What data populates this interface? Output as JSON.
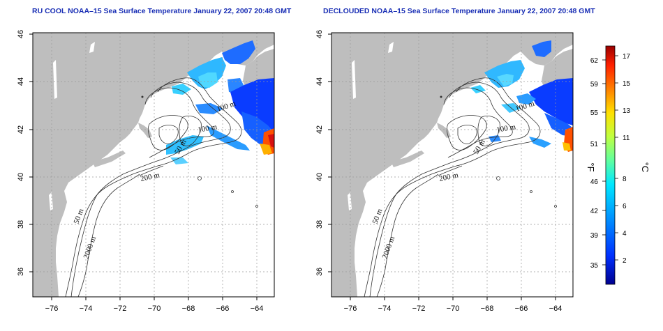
{
  "titles": {
    "left": "RU COOL NOAA–15 Sea Surface Temperature January 22, 2007 20:48 GMT",
    "right": "DECLOUDED NOAA–15 Sea Surface Temperature January 22, 2007 20:48 GMT"
  },
  "axes": {
    "x_ticks": [
      "−76",
      "−74",
      "−72",
      "−70",
      "−68",
      "−66",
      "−64"
    ],
    "y_ticks": [
      "36",
      "38",
      "40",
      "42",
      "44",
      "46"
    ]
  },
  "contours": {
    "labels_left": [
      "100 m",
      "100 m",
      "50 m",
      "200 m",
      "50 m",
      "2000 m"
    ],
    "labels_right": [
      "100 m",
      "100 m",
      "50 m",
      "200 m",
      "50 m",
      "2000 m"
    ]
  },
  "colorbar": {
    "fahrenheit_unit": "°F",
    "celsius_unit": "°C",
    "fahrenheit_ticks": [
      "62",
      "59",
      "55",
      "51",
      "46",
      "42",
      "39",
      "35"
    ],
    "celsius_ticks": [
      "17",
      "15",
      "13",
      "11",
      "8",
      "6",
      "4",
      "2"
    ],
    "colors": [
      "#00008f",
      "#0030ff",
      "#00a0ff",
      "#00e8ff",
      "#60ff9f",
      "#c0ff40",
      "#ffe000",
      "#ff8000",
      "#ff2000",
      "#9a0000"
    ]
  },
  "colors": {
    "land": "#bebebe",
    "title": "#1a2fb5"
  }
}
